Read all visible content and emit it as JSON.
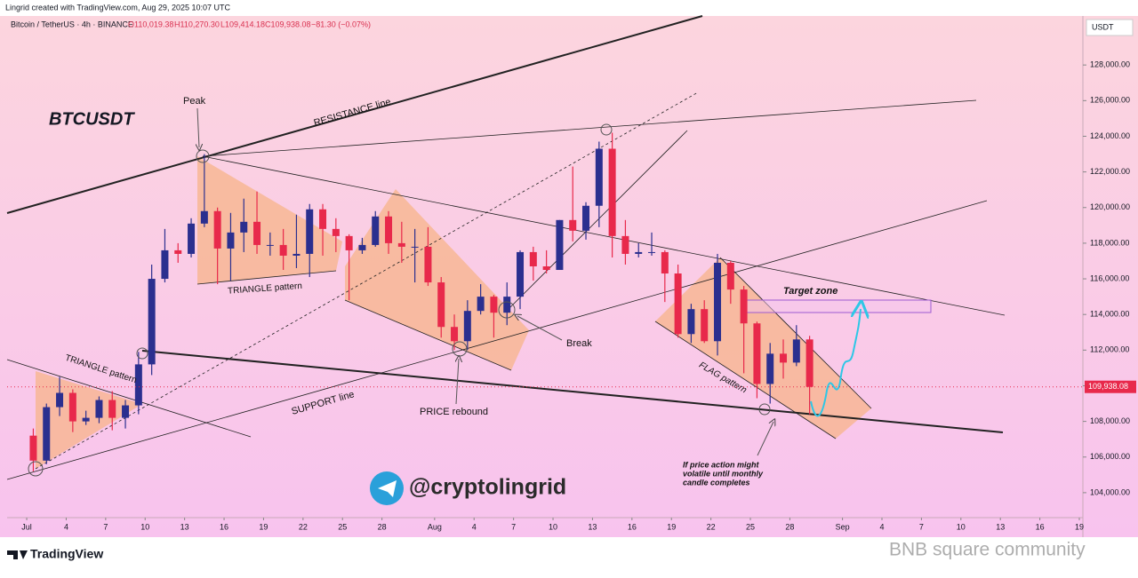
{
  "header": "Lingrid created with TradingView.com, Aug 29, 2025 10:07 UTC",
  "chart_data": {
    "type": "candlestick",
    "symbol": "Bitcoin / TetherUS · 4h · BINANCE",
    "ohlc_legend": [
      "O110,019.38",
      "H110,270.30",
      "L109,414.18",
      "C109,938.08",
      "−81.30 (−0.07%)"
    ],
    "title": "BTCUSDT",
    "currency": "USDT",
    "x": [
      0.5,
      1.5,
      2.5,
      3.5,
      4.5,
      5.5,
      6.5,
      7.5,
      8.5,
      9.5,
      10.5,
      11.5,
      12.5,
      13.5,
      14.5,
      15.5,
      16.5,
      17.5,
      18.5,
      19.5,
      20.5,
      21.5,
      22.5,
      23.5,
      24.5,
      25.5,
      26.5,
      27.5,
      28.5,
      29.5,
      30.5,
      31.5,
      32.5,
      33.5,
      34.5,
      35.5,
      36.5,
      37.5,
      38.5,
      39.5,
      40.5,
      41.5,
      42.5,
      43.5,
      44.5,
      45.5,
      46.5,
      47.5,
      48.5,
      49.5,
      50.5,
      51.5,
      52.5,
      53.5,
      54.5,
      55.5,
      56.5,
      57.5,
      58.5,
      59.5
    ],
    "open": [
      107200,
      105800,
      108800,
      109600,
      108000,
      108200,
      109200,
      108200,
      108900,
      111200,
      116000,
      117600,
      117400,
      119100,
      119800,
      117700,
      118600,
      119200,
      117900,
      117900,
      117300,
      117400,
      119900,
      118800,
      118400,
      117600,
      117900,
      119500,
      118000,
      117800,
      117800,
      115800,
      113300,
      112500,
      114200,
      115000,
      114100,
      115000,
      117500,
      116700,
      116500,
      119300,
      118700,
      120100,
      123300,
      118400,
      117400,
      117500,
      117500,
      116300,
      112900,
      114300,
      112500,
      116900,
      115400,
      113500,
      110100,
      111800,
      111300,
      112600
    ],
    "high": [
      107600,
      109000,
      110500,
      109800,
      108600,
      109400,
      109700,
      109200,
      111900,
      116800,
      118800,
      118000,
      119400,
      123000,
      120000,
      119700,
      120500,
      120900,
      118600,
      118800,
      119600,
      120200,
      120200,
      119400,
      118500,
      118300,
      119800,
      119800,
      119200,
      118800,
      118900,
      116100,
      114000,
      114800,
      115700,
      115100,
      115800,
      117600,
      117800,
      117600,
      119300,
      122300,
      120300,
      123700,
      124200,
      119300,
      118000,
      118600,
      117600,
      116800,
      114600,
      114800,
      117400,
      117000,
      115600,
      113600,
      112400,
      112600,
      113400,
      112800
    ],
    "low": [
      105200,
      105600,
      108300,
      107400,
      107800,
      107900,
      107500,
      107600,
      108400,
      110600,
      115800,
      116900,
      117200,
      118900,
      115700,
      115900,
      117500,
      117400,
      117300,
      116500,
      116600,
      116100,
      117300,
      117500,
      114800,
      117400,
      117800,
      117400,
      116900,
      115800,
      115600,
      112700,
      112000,
      112000,
      114000,
      112700,
      113400,
      114300,
      115900,
      116300,
      116500,
      118100,
      118200,
      118900,
      117200,
      116800,
      117200,
      117300,
      114700,
      112700,
      112400,
      112400,
      111700,
      114600,
      110700,
      109300,
      109000,
      110400,
      111100,
      108400
    ],
    "close": [
      105800,
      108800,
      109600,
      108000,
      108200,
      109200,
      108200,
      108900,
      111200,
      116000,
      117600,
      117400,
      119100,
      119800,
      117700,
      118600,
      119200,
      117900,
      117900,
      117300,
      117400,
      119900,
      118800,
      118400,
      117600,
      117900,
      119500,
      118000,
      117800,
      117800,
      115800,
      113300,
      112500,
      114200,
      115000,
      114100,
      115000,
      117500,
      116700,
      116500,
      119300,
      118700,
      120100,
      123300,
      118400,
      117400,
      117500,
      117500,
      116300,
      112900,
      114300,
      112500,
      116900,
      115400,
      113500,
      110100,
      111800,
      111300,
      112600,
      109938.08
    ],
    "up_color": "#2b2f8f",
    "down_color": "#e8294b",
    "last_price": {
      "value": 109938.08,
      "label": "109,938.08"
    },
    "ylim": [
      102600,
      130750
    ],
    "yticks": [
      {
        "value": 104000,
        "label": "104,000.00"
      },
      {
        "value": 106000,
        "label": "106,000.00"
      },
      {
        "value": 108000,
        "label": "108,000.00"
      },
      {
        "value": 110000,
        "label": "110,000.00"
      },
      {
        "value": 112000,
        "label": "112,000.00"
      },
      {
        "value": 114000,
        "label": "114,000.00"
      },
      {
        "value": 116000,
        "label": "116,000.00"
      },
      {
        "value": 118000,
        "label": "118,000.00"
      },
      {
        "value": 120000,
        "label": "120,000.00"
      },
      {
        "value": 122000,
        "label": "122,000.00"
      },
      {
        "value": 124000,
        "label": "124,000.00"
      },
      {
        "value": 126000,
        "label": "126,000.00"
      },
      {
        "value": 128000,
        "label": "128,000.00"
      }
    ],
    "xlim": [
      -1.49,
      80.27
    ],
    "xticks": [
      {
        "value": 0,
        "label": "Jul"
      },
      {
        "value": 3,
        "label": "4"
      },
      {
        "value": 6,
        "label": "7"
      },
      {
        "value": 9,
        "label": "10"
      },
      {
        "value": 12,
        "label": "13"
      },
      {
        "value": 15,
        "label": "16"
      },
      {
        "value": 18,
        "label": "19"
      },
      {
        "value": 21,
        "label": "22"
      },
      {
        "value": 24,
        "label": "25"
      },
      {
        "value": 27,
        "label": "28"
      },
      {
        "value": 31,
        "label": "Aug"
      },
      {
        "value": 34,
        "label": "4"
      },
      {
        "value": 37,
        "label": "7"
      },
      {
        "value": 40,
        "label": "10"
      },
      {
        "value": 43,
        "label": "13"
      },
      {
        "value": 46,
        "label": "16"
      },
      {
        "value": 49,
        "label": "19"
      },
      {
        "value": 52,
        "label": "22"
      },
      {
        "value": 55,
        "label": "25"
      },
      {
        "value": 58,
        "label": "28"
      },
      {
        "value": 62,
        "label": "Sep"
      },
      {
        "value": 65,
        "label": "4"
      },
      {
        "value": 68,
        "label": "7"
      },
      {
        "value": 71,
        "label": "10"
      },
      {
        "value": 74,
        "label": "13"
      },
      {
        "value": 77,
        "label": "16"
      },
      {
        "value": 80,
        "label": "19"
      }
    ],
    "grid": false,
    "annotations": [
      "Peak",
      "RESISTANCE line",
      "TRIANGLE pattern",
      "TRIANGLE pattern",
      "SUPPORT line",
      "PRICE rebound",
      "Break",
      "FLAG pattern",
      "Target zone",
      "If price action might",
      "volatile until monthly",
      "candle completes"
    ]
  },
  "channel": "@cryptolingrid",
  "footer_logo": "TradingView",
  "watermark": "BNB square community"
}
